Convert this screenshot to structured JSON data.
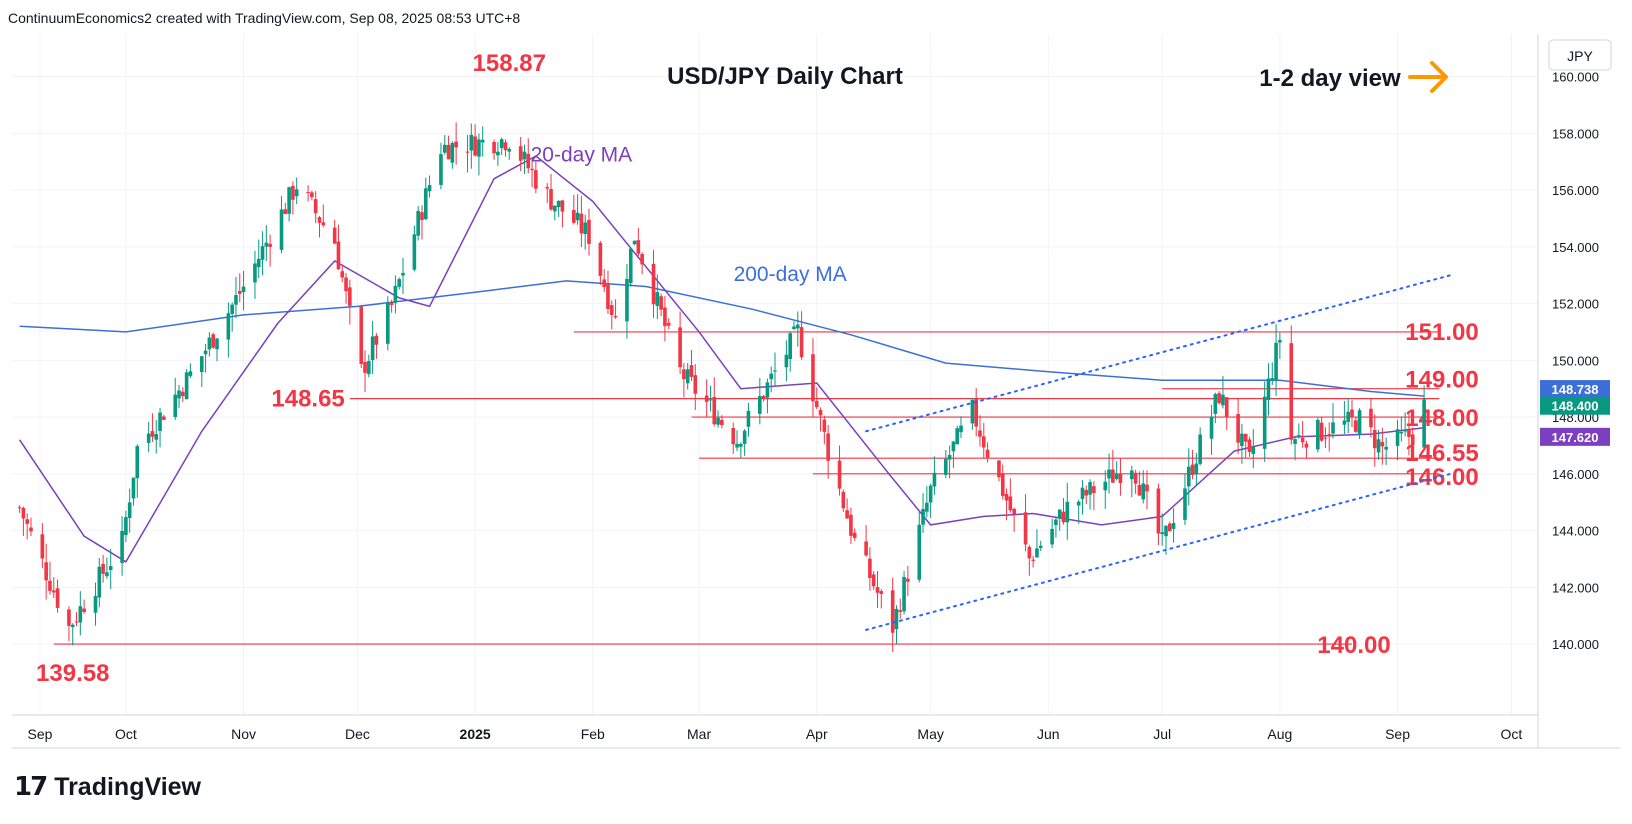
{
  "header": {
    "attribution": "ContinuumEconomics2 created with TradingView.com, Sep 08, 2025 08:53 UTC+8"
  },
  "footer": {
    "brand": "TradingView"
  },
  "colors": {
    "up": "#089981",
    "down": "#f23645",
    "ma20": "#7b3fbf",
    "ma200": "#3d6fd8",
    "level_line": "#f23645",
    "trend": "#2962ff",
    "arrow": "#ff9800",
    "grid": "#f0f3fa"
  },
  "chart_data": {
    "type": "candlestick",
    "title": "USD/JPY Daily Chart",
    "view_label": "1-2 day view",
    "view_icon": "arrow-right-icon",
    "currency": "JPY",
    "x_axis": [
      "Sep",
      "Oct",
      "Nov",
      "Dec",
      "2025",
      "Feb",
      "Mar",
      "Apr",
      "May",
      "Jun",
      "Jul",
      "Aug",
      "Sep",
      "Oct"
    ],
    "y_ticks": [
      "140.000",
      "142.000",
      "144.000",
      "146.000",
      "148.000",
      "150.000",
      "152.000",
      "154.000",
      "156.000",
      "158.000",
      "160.000"
    ],
    "ylim": [
      137.5,
      161.5
    ],
    "price_labels": [
      {
        "value": "148.738",
        "price": 148.74,
        "color": "#3d6fd8"
      },
      {
        "value": "148.400",
        "price": 148.4,
        "color": "#089981"
      },
      {
        "value": "147.620",
        "price": 147.62,
        "color": "#7b3fbf"
      }
    ],
    "levels": [
      {
        "label": "151.00",
        "price": 151.0,
        "start": "2025-01-27",
        "end": "2025-09-12"
      },
      {
        "label": "149.00",
        "price": 149.0,
        "start": "2025-07-01",
        "end": "2025-09-12"
      },
      {
        "label": "148.00",
        "price": 148.0,
        "start": "2025-02-27",
        "end": "2025-09-12"
      },
      {
        "label": "146.55",
        "price": 146.55,
        "start": "2025-03-01",
        "end": "2025-09-12"
      },
      {
        "label": "146.00",
        "price": 146.0,
        "start": "2025-03-31",
        "end": "2025-09-12"
      },
      {
        "label": "140.00",
        "price": 140.0,
        "start": "2024-09-12",
        "end": "2025-08-20"
      }
    ],
    "extra_levels": [
      {
        "price": 148.65,
        "start": "2024-11-29",
        "end": "2025-09-12"
      }
    ],
    "annotations": [
      {
        "text": "158.87",
        "date": "2025-01-10",
        "price": 160.2
      },
      {
        "text": "148.65",
        "date": "2024-11-18",
        "price": 148.65
      },
      {
        "text": "139.58",
        "date": "2024-09-17",
        "price": 138.7
      },
      {
        "text": "20-day MA",
        "date": "2025-01-29",
        "price": 157.0
      },
      {
        "text": "200-day MA",
        "date": "2025-03-25",
        "price": 152.8
      }
    ],
    "trendlines": [
      {
        "from": {
          "date": "2025-04-14",
          "price": 140.5
        },
        "to": {
          "date": "2025-09-15",
          "price": 146.0
        }
      },
      {
        "from": {
          "date": "2025-04-14",
          "price": 147.5
        },
        "to": {
          "date": "2025-09-15",
          "price": 153.0
        }
      }
    ],
    "key_points": [
      {
        "date": "2024-09-03",
        "close": 144.8
      },
      {
        "date": "2024-09-16",
        "close": 140.6
      },
      {
        "date": "2024-09-30",
        "close": 143.6
      },
      {
        "date": "2024-10-04",
        "close": 146.9
      },
      {
        "date": "2024-10-18",
        "close": 149.5
      },
      {
        "date": "2024-11-01",
        "close": 152.6
      },
      {
        "date": "2024-11-15",
        "close": 156.2
      },
      {
        "date": "2024-11-25",
        "close": 154.2
      },
      {
        "date": "2024-12-02",
        "close": 149.6
      },
      {
        "date": "2024-12-10",
        "close": 151.9
      },
      {
        "date": "2024-12-23",
        "close": 157.5
      },
      {
        "date": "2025-01-10",
        "close": 157.8
      },
      {
        "date": "2025-01-20",
        "close": 155.8
      },
      {
        "date": "2025-01-31",
        "close": 154.4
      },
      {
        "date": "2025-02-07",
        "close": 151.4
      },
      {
        "date": "2025-02-12",
        "close": 154.4
      },
      {
        "date": "2025-02-24",
        "close": 149.6
      },
      {
        "date": "2025-03-11",
        "close": 147.2
      },
      {
        "date": "2025-03-27",
        "close": 151.0
      },
      {
        "date": "2025-04-04",
        "close": 146.8
      },
      {
        "date": "2025-04-11",
        "close": 143.6
      },
      {
        "date": "2025-04-21",
        "close": 140.6
      },
      {
        "date": "2025-05-01",
        "close": 145.4
      },
      {
        "date": "2025-05-12",
        "close": 148.2
      },
      {
        "date": "2025-05-27",
        "close": 143.0
      },
      {
        "date": "2025-06-06",
        "close": 144.8
      },
      {
        "date": "2025-06-23",
        "close": 146.4
      },
      {
        "date": "2025-07-01",
        "close": 143.5
      },
      {
        "date": "2025-07-16",
        "close": 148.8
      },
      {
        "date": "2025-07-24",
        "close": 146.4
      },
      {
        "date": "2025-08-01",
        "close": 150.8
      },
      {
        "date": "2025-08-04",
        "close": 147.2
      },
      {
        "date": "2025-08-22",
        "close": 147.9
      },
      {
        "date": "2025-08-28",
        "close": 146.9
      },
      {
        "date": "2025-09-05",
        "close": 147.4
      },
      {
        "date": "2025-09-08",
        "close": 148.4
      }
    ],
    "ma200": [
      {
        "date": "2024-09-03",
        "value": 151.2
      },
      {
        "date": "2024-10-01",
        "value": 151.0
      },
      {
        "date": "2024-11-01",
        "value": 151.6
      },
      {
        "date": "2024-12-01",
        "value": 151.9
      },
      {
        "date": "2025-01-01",
        "value": 152.4
      },
      {
        "date": "2025-01-25",
        "value": 152.8
      },
      {
        "date": "2025-02-15",
        "value": 152.6
      },
      {
        "date": "2025-03-15",
        "value": 151.8
      },
      {
        "date": "2025-04-10",
        "value": 150.9
      },
      {
        "date": "2025-05-05",
        "value": 149.9
      },
      {
        "date": "2025-06-01",
        "value": 149.6
      },
      {
        "date": "2025-07-01",
        "value": 149.3
      },
      {
        "date": "2025-08-01",
        "value": 149.3
      },
      {
        "date": "2025-08-25",
        "value": 148.9
      },
      {
        "date": "2025-09-08",
        "value": 148.74
      }
    ],
    "ma20": [
      {
        "date": "2024-09-03",
        "value": 147.2
      },
      {
        "date": "2024-09-20",
        "value": 143.8
      },
      {
        "date": "2024-10-01",
        "value": 142.9
      },
      {
        "date": "2024-10-21",
        "value": 147.5
      },
      {
        "date": "2024-11-10",
        "value": 151.3
      },
      {
        "date": "2024-11-25",
        "value": 153.5
      },
      {
        "date": "2024-12-12",
        "value": 152.2
      },
      {
        "date": "2024-12-20",
        "value": 151.9
      },
      {
        "date": "2025-01-06",
        "value": 156.4
      },
      {
        "date": "2025-01-17",
        "value": 157.2
      },
      {
        "date": "2025-02-01",
        "value": 155.6
      },
      {
        "date": "2025-02-15",
        "value": 153.3
      },
      {
        "date": "2025-03-01",
        "value": 151.0
      },
      {
        "date": "2025-03-12",
        "value": 149.0
      },
      {
        "date": "2025-04-01",
        "value": 149.2
      },
      {
        "date": "2025-04-20",
        "value": 146.0
      },
      {
        "date": "2025-05-01",
        "value": 144.2
      },
      {
        "date": "2025-05-15",
        "value": 144.5
      },
      {
        "date": "2025-05-28",
        "value": 144.6
      },
      {
        "date": "2025-06-15",
        "value": 144.2
      },
      {
        "date": "2025-07-01",
        "value": 144.5
      },
      {
        "date": "2025-07-20",
        "value": 146.8
      },
      {
        "date": "2025-08-05",
        "value": 147.3
      },
      {
        "date": "2025-08-25",
        "value": 147.4
      },
      {
        "date": "2025-09-08",
        "value": 147.62
      }
    ]
  }
}
